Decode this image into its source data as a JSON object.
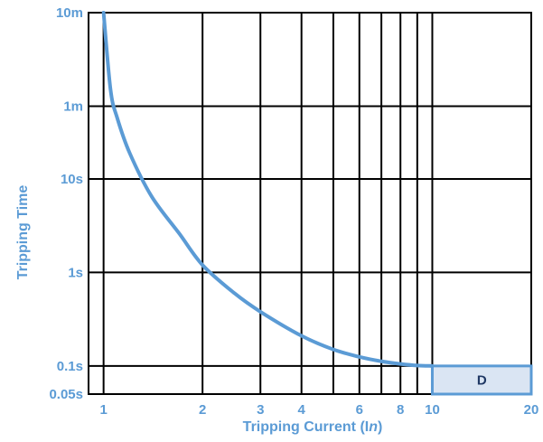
{
  "chart_data": {
    "type": "line",
    "title": "",
    "xlabel_prefix": "Tripping Current (I",
    "xlabel_italic": "n",
    "xlabel_suffix": ")",
    "ylabel": "Tripping Time",
    "x_scale": "log",
    "y_scale": "log",
    "xlim": [
      0.9,
      20
    ],
    "ylim_seconds": [
      0.05,
      600
    ],
    "x_ticks": [
      {
        "value": 1,
        "label": "1"
      },
      {
        "value": 2,
        "label": "2"
      },
      {
        "value": 3,
        "label": "3"
      },
      {
        "value": 4,
        "label": "4"
      },
      {
        "value": 6,
        "label": "6"
      },
      {
        "value": 8,
        "label": "8"
      },
      {
        "value": 10,
        "label": "10"
      },
      {
        "value": 20,
        "label": "20"
      }
    ],
    "x_gridlines": [
      1,
      2,
      3,
      4,
      5,
      6,
      7,
      8,
      9,
      10,
      20
    ],
    "y_ticks": [
      {
        "value": 600,
        "label": "10m"
      },
      {
        "value": 60,
        "label": "1m"
      },
      {
        "value": 10,
        "label": "10s"
      },
      {
        "value": 1,
        "label": "1s"
      },
      {
        "value": 0.1,
        "label": "0.1s"
      },
      {
        "value": 0.05,
        "label": "0.05s"
      }
    ],
    "y_gridlines": [
      600,
      60,
      10,
      1,
      0.1
    ],
    "grid": true,
    "series": [
      {
        "color": "#5b9bd5",
        "points": [
          {
            "x": 1.0,
            "y": 600
          },
          {
            "x": 1.05,
            "y": 90
          },
          {
            "x": 1.1,
            "y": 45
          },
          {
            "x": 1.2,
            "y": 19
          },
          {
            "x": 1.4,
            "y": 6.5
          },
          {
            "x": 1.7,
            "y": 2.6
          },
          {
            "x": 2.0,
            "y": 1.2
          },
          {
            "x": 2.5,
            "y": 0.6
          },
          {
            "x": 3.0,
            "y": 0.38
          },
          {
            "x": 4.0,
            "y": 0.21
          },
          {
            "x": 5.0,
            "y": 0.15
          },
          {
            "x": 6.0,
            "y": 0.125
          },
          {
            "x": 7.0,
            "y": 0.112
          },
          {
            "x": 8.0,
            "y": 0.105
          },
          {
            "x": 9.0,
            "y": 0.101
          },
          {
            "x": 10.0,
            "y": 0.1
          }
        ]
      }
    ],
    "zone": {
      "label": "D",
      "x_range": [
        10,
        20
      ],
      "y_range": [
        0.05,
        0.1
      ],
      "fill": "#dae5f3",
      "stroke": "#5b9bd5"
    },
    "colors": {
      "label": "#5b9bd5",
      "grid": "#000000",
      "zone_text": "#1f3864"
    }
  }
}
